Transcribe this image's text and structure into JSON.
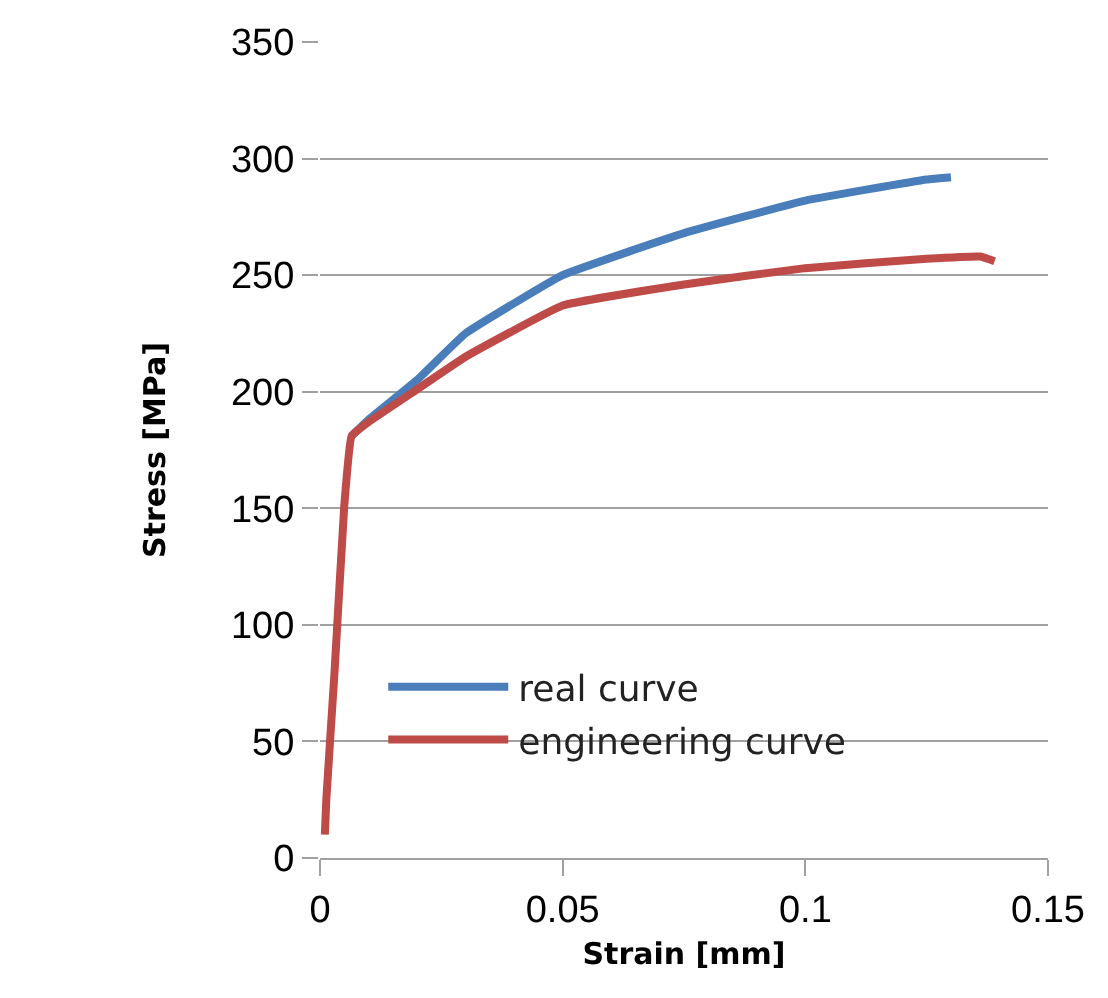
{
  "chart_data": {
    "type": "line",
    "xlabel": "Strain [mm]",
    "ylabel": "Stress [MPa]",
    "xlim": [
      0,
      0.15
    ],
    "xticks": [
      0,
      0.05,
      0.1,
      0.15
    ],
    "ylim": [
      0,
      350
    ],
    "yticks": [
      0,
      50,
      100,
      150,
      200,
      250,
      300,
      350
    ],
    "grid": "y",
    "legend": "bottom left",
    "marker": "none",
    "line_style": "solid",
    "series": [
      {
        "name": "real curve",
        "color": "#4a7ebb",
        "x": [
          0.0065,
          0.01,
          0.02,
          0.03,
          0.05,
          0.075,
          0.1,
          0.125,
          0.13
        ],
        "values": [
          181,
          188,
          205,
          225,
          250,
          268,
          282,
          291,
          292
        ]
      },
      {
        "name": "engineering curve",
        "color": "#be4b48",
        "x": [
          0.001,
          0.0013,
          0.003,
          0.005,
          0.0065,
          0.01,
          0.02,
          0.03,
          0.05,
          0.075,
          0.1,
          0.125,
          0.136,
          0.139
        ],
        "values": [
          10,
          25,
          80,
          151,
          181,
          187,
          201,
          215,
          237,
          246,
          253,
          257,
          258,
          256
        ]
      }
    ]
  }
}
